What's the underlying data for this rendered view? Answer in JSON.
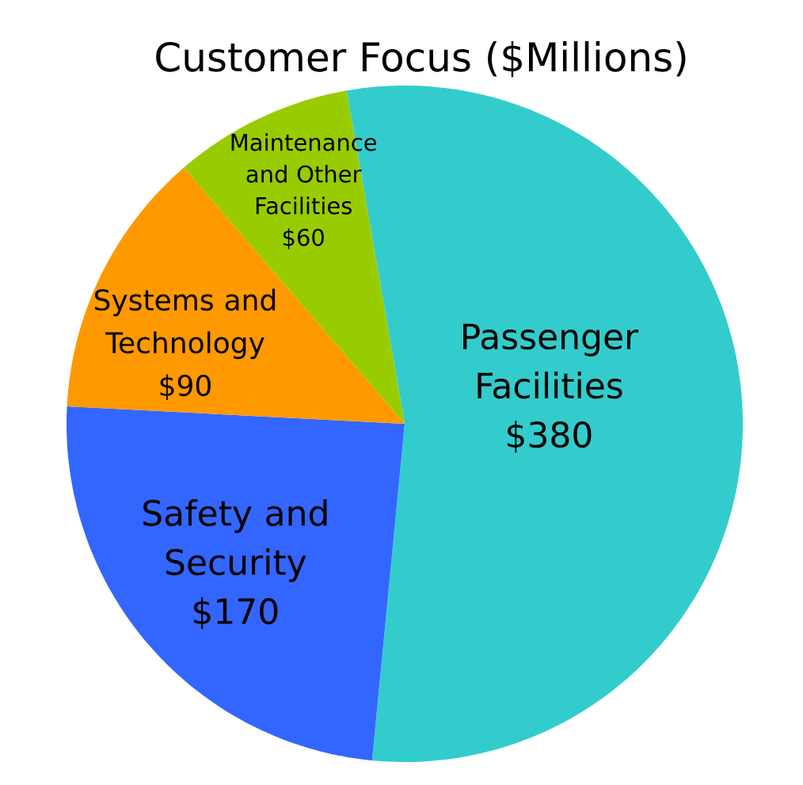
{
  "chart_data": {
    "type": "pie",
    "title": "Customer Focus ($Millions)",
    "categories": [
      "Passenger Facilities",
      "Safety and Security",
      "Systems and Technology",
      "Maintenance and Other Facilities"
    ],
    "values": [
      380,
      170,
      90,
      60
    ],
    "colors": [
      "#33cccc",
      "#3366ff",
      "#ff9900",
      "#99cc00"
    ],
    "value_labels": [
      "$380",
      "$170",
      "$90",
      "$60"
    ]
  }
}
